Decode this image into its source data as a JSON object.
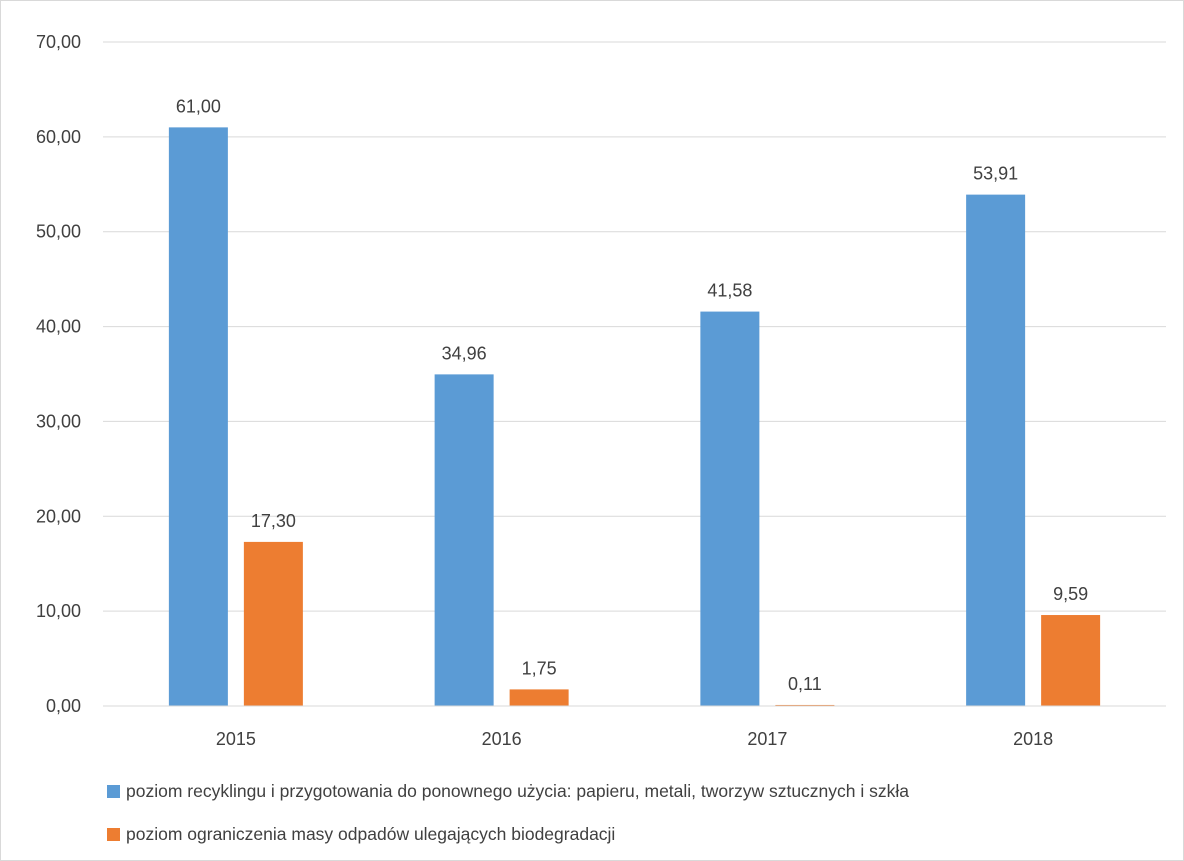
{
  "chart_data": {
    "type": "bar",
    "categories": [
      "2015",
      "2016",
      "2017",
      "2018"
    ],
    "series": [
      {
        "name": "poziom recyklingu i przygotowania do ponownego użycia: papieru, metali, tworzyw sztucznych i szkła",
        "values": [
          61.0,
          34.96,
          41.58,
          53.91
        ],
        "labels": [
          "61,00",
          "34,96",
          "41,58",
          "53,91"
        ],
        "color": "#5b9bd5"
      },
      {
        "name": "poziom ograniczenia masy odpadów ulegających biodegradacji",
        "values": [
          17.3,
          1.75,
          0.11,
          9.59
        ],
        "labels": [
          "17,30",
          "1,75",
          "0,11",
          "9,59"
        ],
        "color": "#ed7d31"
      }
    ],
    "yticks": [
      0,
      10,
      20,
      30,
      40,
      50,
      60,
      70
    ],
    "ytick_labels": [
      "0,00",
      "10,00",
      "20,00",
      "30,00",
      "40,00",
      "50,00",
      "60,00",
      "70,00"
    ],
    "ylim": [
      0,
      70
    ],
    "grid": true,
    "legend_position": "bottom-left",
    "gridline_color": "#d9d9d9",
    "text_color": "#404040"
  }
}
